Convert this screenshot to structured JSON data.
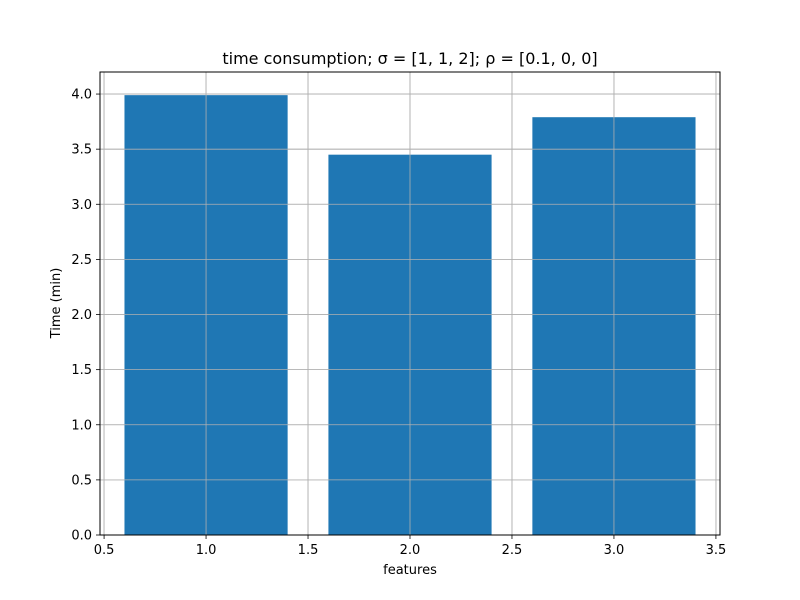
{
  "chart_data": {
    "type": "bar",
    "title": "time consumption;  σ = [1, 1, 2];  ρ = [0.1, 0, 0]",
    "xlabel": "features",
    "ylabel": "Time (min)",
    "x": [
      1.0,
      2.0,
      3.0
    ],
    "values": [
      3.99,
      3.45,
      3.79
    ],
    "bar_width": 0.8,
    "xlim": [
      0.48,
      3.52
    ],
    "ylim": [
      0,
      4.2
    ],
    "xticks": [
      0.5,
      1.0,
      1.5,
      2.0,
      2.5,
      3.0,
      3.5
    ],
    "xtick_labels": [
      "0.5",
      "1.0",
      "1.5",
      "2.0",
      "2.5",
      "3.0",
      "3.5"
    ],
    "yticks": [
      0.0,
      0.5,
      1.0,
      1.5,
      2.0,
      2.5,
      3.0,
      3.5,
      4.0
    ],
    "ytick_labels": [
      "0.0",
      "0.5",
      "1.0",
      "1.5",
      "2.0",
      "2.5",
      "3.0",
      "3.5",
      "4.0"
    ],
    "grid": true,
    "bar_color": "#1f77b4",
    "grid_color": "#b0b0b0"
  }
}
